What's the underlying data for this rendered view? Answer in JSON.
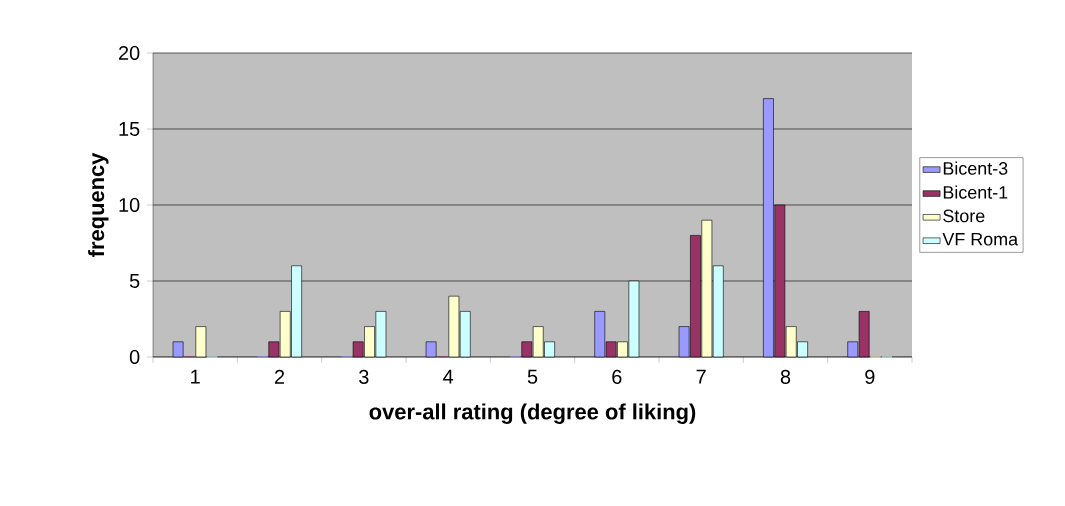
{
  "chart_data": {
    "type": "bar",
    "xlabel": "over-all rating (degree of liking)",
    "ylabel": "frequency",
    "categories": [
      "1",
      "2",
      "3",
      "4",
      "5",
      "6",
      "7",
      "8",
      "9"
    ],
    "series": [
      {
        "name": "Bicent-3",
        "color": "#9999ff",
        "values": [
          1,
          0,
          0,
          1,
          0,
          3,
          2,
          17,
          1
        ]
      },
      {
        "name": "Bicent-1",
        "color": "#993366",
        "values": [
          0,
          1,
          1,
          0,
          1,
          1,
          8,
          10,
          3
        ]
      },
      {
        "name": "Store",
        "color": "#ffffcc",
        "values": [
          2,
          3,
          2,
          4,
          2,
          1,
          9,
          2,
          0
        ]
      },
      {
        "name": "VF Roma",
        "color": "#ccffff",
        "values": [
          0,
          6,
          3,
          3,
          1,
          5,
          6,
          1,
          0
        ]
      }
    ],
    "ylim": [
      0,
      20
    ],
    "yticks": [
      0,
      5,
      10,
      15,
      20
    ],
    "grid": "y",
    "legend": "right"
  }
}
